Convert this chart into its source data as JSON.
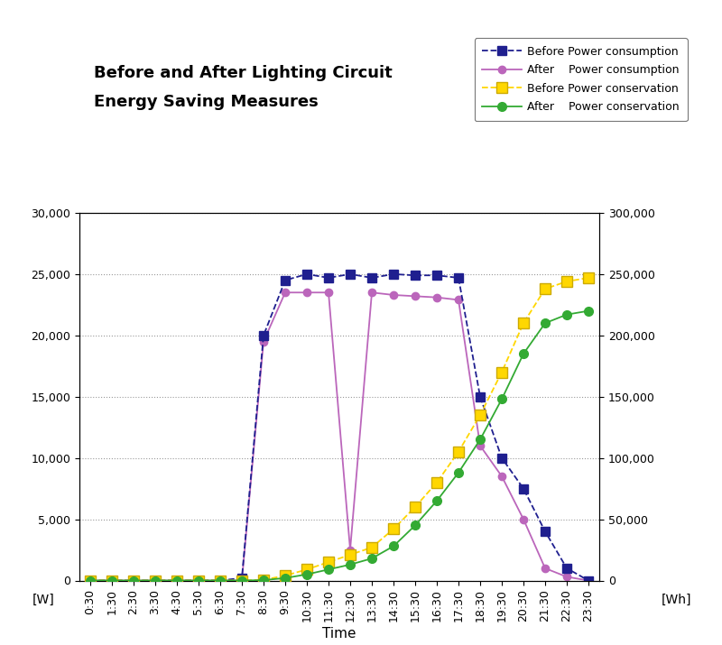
{
  "title_line1": "Before and After Lighting Circuit",
  "title_line2": "Energy Saving Measures",
  "xlabel": "Time",
  "ylabel_left": "[W]",
  "ylabel_right": "[Wh]",
  "time_labels": [
    "0:30",
    "1:30",
    "2:30",
    "3:30",
    "4:30",
    "5:30",
    "6:30",
    "7:30",
    "8:30",
    "9:30",
    "10:30",
    "11:30",
    "12:30",
    "13:30",
    "14:30",
    "15:30",
    "16:30",
    "17:30",
    "18:30",
    "19:30",
    "20:30",
    "21:30",
    "22:30",
    "23:30"
  ],
  "ylim_left": [
    0,
    30000
  ],
  "ylim_right": [
    0,
    300000
  ],
  "yticks_left": [
    0,
    5000,
    10000,
    15000,
    20000,
    25000,
    30000
  ],
  "yticks_right": [
    0,
    50000,
    100000,
    150000,
    200000,
    250000,
    300000
  ],
  "before_power_consumption": [
    0,
    0,
    0,
    0,
    0,
    0,
    0,
    200,
    20000,
    24500,
    25000,
    24700,
    25000,
    24700,
    25000,
    24900,
    24900,
    24700,
    15000,
    10000,
    7500,
    4000,
    1000,
    0
  ],
  "after_power_consumption": [
    0,
    0,
    0,
    0,
    0,
    0,
    0,
    0,
    19500,
    23500,
    23500,
    23500,
    2500,
    23500,
    23300,
    23200,
    23100,
    22900,
    11000,
    8500,
    5000,
    1000,
    300,
    0
  ],
  "before_power_conservation": [
    0,
    0,
    0,
    0,
    0,
    0,
    0,
    0,
    500,
    4000,
    9000,
    15000,
    21000,
    27000,
    42000,
    60000,
    80000,
    105000,
    135000,
    170000,
    210000,
    238000,
    244000,
    247000
  ],
  "after_power_conservation": [
    0,
    0,
    0,
    0,
    0,
    0,
    0,
    0,
    300,
    2000,
    5000,
    9000,
    13000,
    18000,
    28000,
    45000,
    65000,
    88000,
    115000,
    148000,
    185000,
    210000,
    217000,
    220000
  ],
  "before_pc_color": "#1F1F8F",
  "after_pc_color": "#BB66BB",
  "before_cons_color": "#FFD700",
  "after_cons_color": "#33AA33",
  "legend_labels": [
    "Before Power consumption",
    "After    Power consumption",
    "Before Power conservation",
    "After    Power conservation"
  ],
  "background_color": "#FFFFFF",
  "grid_color": "#999999",
  "title_fontsize": 13,
  "axis_fontsize": 10,
  "tick_fontsize": 9
}
